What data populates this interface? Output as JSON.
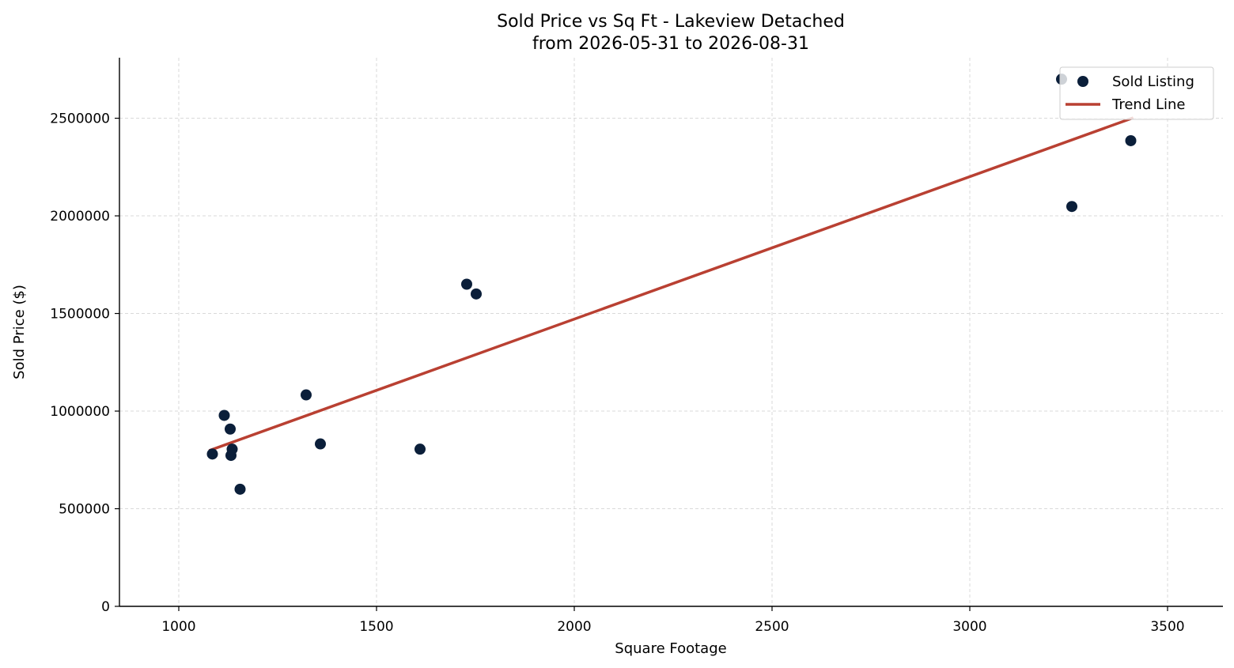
{
  "chart_data": {
    "type": "scatter",
    "title": "Sold Price vs Sq Ft - Lakeview Detached",
    "subtitle": "from 2026-05-31 to 2026-08-31",
    "xlabel": "Square Footage",
    "ylabel": "Sold Price ($)",
    "xlim": [
      850,
      3640
    ],
    "ylim": [
      0,
      2810000
    ],
    "x_ticks": [
      1000,
      1500,
      2000,
      2500,
      3000,
      3500
    ],
    "y_ticks": [
      0,
      500000,
      1000000,
      1500000,
      2000000,
      2500000
    ],
    "x_tick_labels": [
      "1000",
      "1500",
      "2000",
      "2500",
      "3000",
      "3500"
    ],
    "y_tick_labels": [
      "0",
      "500000",
      "1000000",
      "1500000",
      "2000000",
      "2500000"
    ],
    "grid": true,
    "legend_position": "top-right",
    "series": [
      {
        "name": "Sold Listing",
        "kind": "scatter",
        "color": "#0b1f3a",
        "points": [
          {
            "x": 1085,
            "y": 780000
          },
          {
            "x": 1115,
            "y": 978000
          },
          {
            "x": 1130,
            "y": 908000
          },
          {
            "x": 1132,
            "y": 773000
          },
          {
            "x": 1135,
            "y": 805000
          },
          {
            "x": 1155,
            "y": 600000
          },
          {
            "x": 1322,
            "y": 1083000
          },
          {
            "x": 1358,
            "y": 832000
          },
          {
            "x": 1610,
            "y": 805000
          },
          {
            "x": 1728,
            "y": 1650000
          },
          {
            "x": 1752,
            "y": 1600000
          },
          {
            "x": 3232,
            "y": 2700000
          },
          {
            "x": 3258,
            "y": 2048000
          },
          {
            "x": 3407,
            "y": 2385000
          }
        ]
      },
      {
        "name": "Trend Line",
        "kind": "line",
        "color": "#b94032",
        "points": [
          {
            "x": 1080,
            "y": 800000
          },
          {
            "x": 3410,
            "y": 2500000
          }
        ]
      }
    ]
  }
}
